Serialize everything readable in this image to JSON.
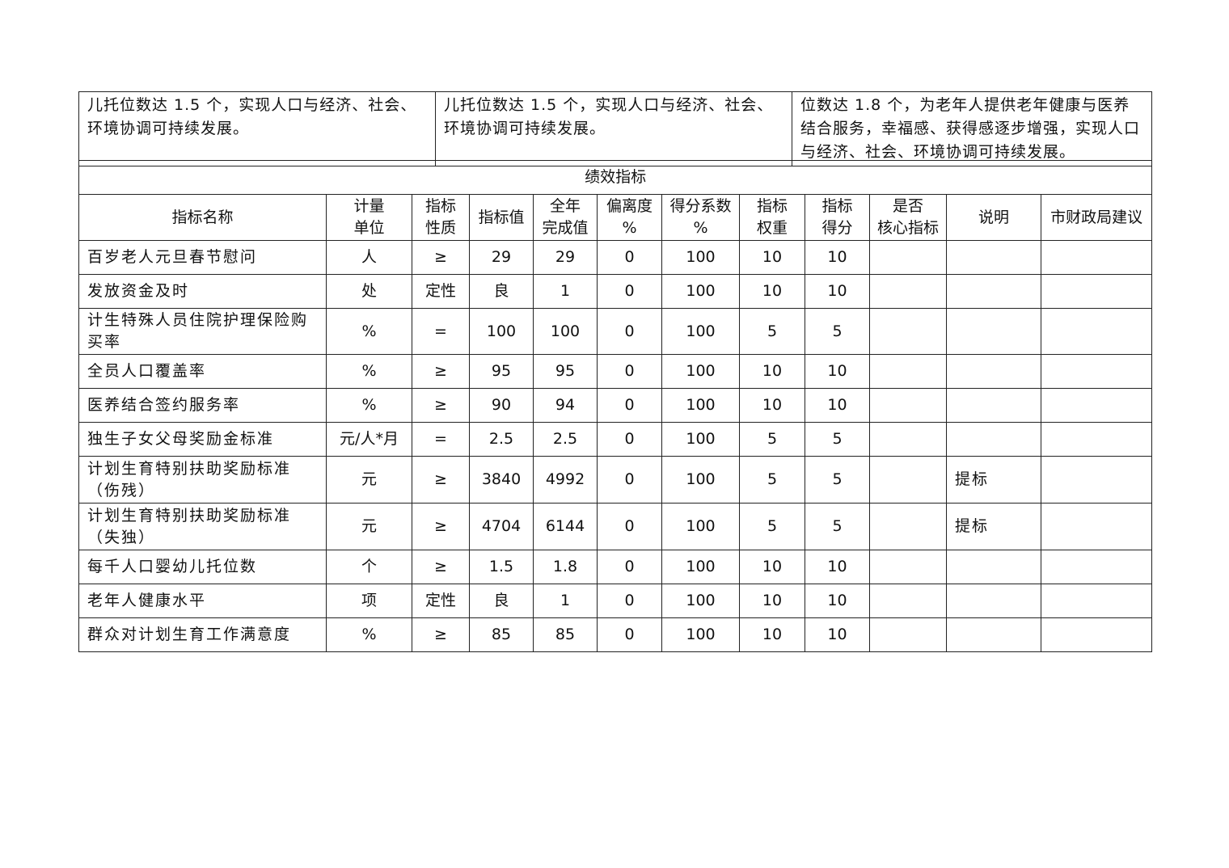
{
  "top_row": [
    "儿托位数达 1.5 个，实现人口与经济、社会、环境协调可持续发展。",
    "儿托位数达 1.5 个，实现人口与经济、社会、环境协调可持续发展。",
    "位数达 1.8 个，为老年人提供老年健康与医养结合服务，幸福感、获得感逐步增强，实现人口与经济、社会、环境协调可持续发展。"
  ],
  "section_title": "绩效指标",
  "headers": [
    "指标名称",
    "计量\n单位",
    "指标\n性质",
    "指标值",
    "全年\n完成值",
    "偏离度\n%",
    "得分系数\n%",
    "指标\n权重",
    "指标\n得分",
    "是否\n核心指标",
    "说明",
    "市财政局建议"
  ],
  "rows": [
    [
      "百岁老人元旦春节慰问",
      "人",
      "≥",
      "29",
      "29",
      "0",
      "100",
      "10",
      "10",
      "",
      "",
      ""
    ],
    [
      "发放资金及时",
      "处",
      "定性",
      "良",
      "1",
      "0",
      "100",
      "10",
      "10",
      "",
      "",
      ""
    ],
    [
      "计生特殊人员住院护理保险购买率",
      "%",
      "=",
      "100",
      "100",
      "0",
      "100",
      "5",
      "5",
      "",
      "",
      ""
    ],
    [
      "全员人口覆盖率",
      "%",
      "≥",
      "95",
      "95",
      "0",
      "100",
      "10",
      "10",
      "",
      "",
      ""
    ],
    [
      "医养结合签约服务率",
      "%",
      "≥",
      "90",
      "94",
      "0",
      "100",
      "10",
      "10",
      "",
      "",
      ""
    ],
    [
      "独生子女父母奖励金标准",
      "元/人*月",
      "=",
      "2.5",
      "2.5",
      "0",
      "100",
      "5",
      "5",
      "",
      "",
      ""
    ],
    [
      "计划生育特别扶助奖励标准（伤残）",
      "元",
      "≥",
      "3840",
      "4992",
      "0",
      "100",
      "5",
      "5",
      "",
      "提标",
      ""
    ],
    [
      "计划生育特别扶助奖励标准（失独）",
      "元",
      "≥",
      "4704",
      "6144",
      "0",
      "100",
      "5",
      "5",
      "",
      "提标",
      ""
    ],
    [
      "每千人口婴幼儿托位数",
      "个",
      "≥",
      "1.5",
      "1.8",
      "0",
      "100",
      "10",
      "10",
      "",
      "",
      ""
    ],
    [
      "老年人健康水平",
      "项",
      "定性",
      "良",
      "1",
      "0",
      "100",
      "10",
      "10",
      "",
      "",
      ""
    ],
    [
      "群众对计划生育工作满意度",
      "%",
      "≥",
      "85",
      "85",
      "0",
      "100",
      "10",
      "10",
      "",
      "",
      ""
    ]
  ]
}
